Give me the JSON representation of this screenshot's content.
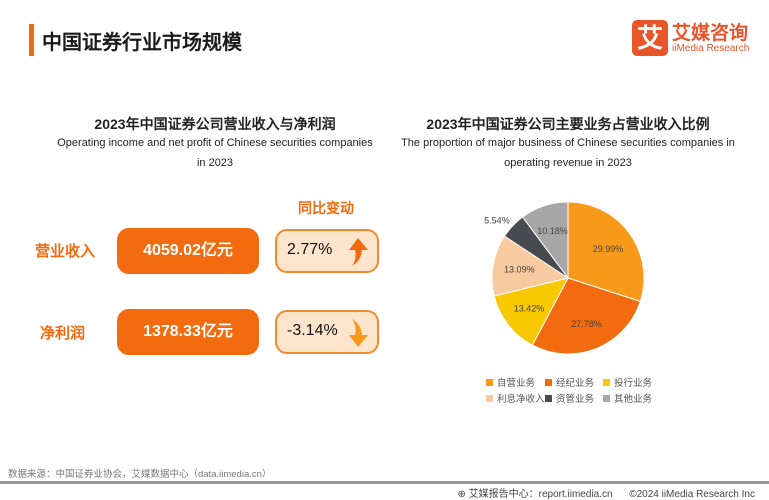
{
  "header": {
    "title": "中国证券行业市场规模",
    "logo": {
      "mark": "艾",
      "cn": "艾媒咨询",
      "en": "iiMedia Research"
    }
  },
  "left": {
    "title": "2023年中国证券公司营业收入与净利润",
    "subtitle_line1": "Operating income and net profit of Chinese securities companies",
    "subtitle_line2": "in 2023",
    "change_header": "同比变动",
    "rows": [
      {
        "label": "营业收入",
        "value": "4059.02亿元",
        "change": "2.77%",
        "direction": "up"
      },
      {
        "label": "净利润",
        "value": "1378.33亿元",
        "change": "-3.14%",
        "direction": "down"
      }
    ]
  },
  "chart_data": {
    "type": "pie",
    "title": "2023年中国证券公司主要业务占营业收入比例",
    "subtitle_line1": "The proportion of major business of Chinese securities companies in",
    "subtitle_line2": "operating revenue in 2023",
    "legend_position": "bottom",
    "slices": [
      {
        "name": "自营业务",
        "value": 29.99,
        "label": "29.99%",
        "color": "#f79a1a"
      },
      {
        "name": "经纪业务",
        "value": 27.78,
        "label": "27.78%",
        "color": "#f26b0f"
      },
      {
        "name": "投行业务",
        "value": 13.42,
        "label": "13.42%",
        "color": "#f8c800"
      },
      {
        "name": "利息净收入",
        "value": 13.09,
        "label": "13.09%",
        "color": "#f9c9a0"
      },
      {
        "name": "资管业务",
        "value": 5.54,
        "label": "5.54%",
        "color": "#474a4f"
      },
      {
        "name": "其他业务",
        "value": 10.18,
        "label": "10.18%",
        "color": "#a7a7a7"
      }
    ]
  },
  "footer": {
    "source": "数据来源：中国证券业协会，艾媒数据中心（data.iimedia.cn）",
    "report": "艾媒报告中心：report.iimedia.cn",
    "copyright": "©2024  iiMedia Research Inc"
  }
}
